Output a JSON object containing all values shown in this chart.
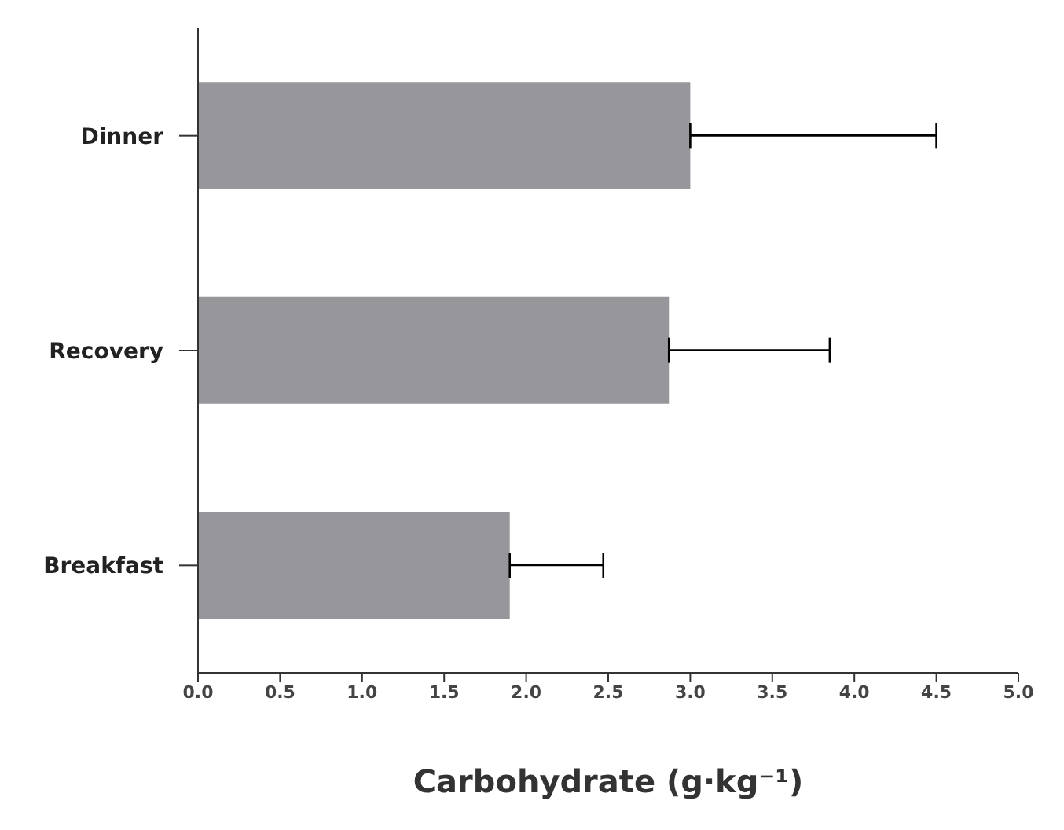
{
  "chart_data": {
    "type": "bar",
    "orientation": "horizontal",
    "xlabel": "Carbohydrate (g·kg⁻¹)",
    "categories": [
      "Dinner",
      "Recovery",
      "Breakfast"
    ],
    "values": [
      3.0,
      2.87,
      1.9
    ],
    "errors": [
      [
        3.0,
        4.5
      ],
      [
        2.87,
        3.85
      ],
      [
        1.9,
        2.47
      ]
    ],
    "color": "#97979b",
    "xlim": [
      0,
      5
    ],
    "xticks": [
      {
        "value": 0,
        "label": "0.0"
      },
      {
        "value": 0.5,
        "label": "0.5"
      },
      {
        "value": 1,
        "label": "1.0"
      },
      {
        "value": 1.5,
        "label": "1.5"
      },
      {
        "value": 2,
        "label": "2.0"
      },
      {
        "value": 2.5,
        "label": "2.5"
      },
      {
        "value": 3,
        "label": "3.0"
      },
      {
        "value": 3.5,
        "label": "3.5"
      },
      {
        "value": 4,
        "label": "4.0"
      },
      {
        "value": 4.5,
        "label": "4.5"
      },
      {
        "value": 5,
        "label": "5.0"
      }
    ],
    "grid": false,
    "legend": false
  }
}
